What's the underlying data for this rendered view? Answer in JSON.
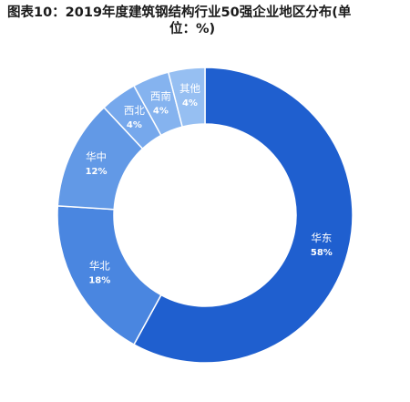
{
  "title_line1": "图表10：2019年度建筑钢结构行业50强企业地区分布(单",
  "title_line2": "位：%)",
  "chart_data": {
    "type": "pie",
    "variant": "donut",
    "title": "图表10：2019年度建筑钢结构行业50强企业地区分布(单位：%)",
    "slices": [
      {
        "label": "华东",
        "value": 58,
        "value_label": "58%",
        "color": "#1f5fcf"
      },
      {
        "label": "华北",
        "value": 18,
        "value_label": "18%",
        "color": "#4a86e0"
      },
      {
        "label": "华中",
        "value": 12,
        "value_label": "12%",
        "color": "#6299e6"
      },
      {
        "label": "西北",
        "value": 4,
        "value_label": "4%",
        "color": "#76a8ec"
      },
      {
        "label": "西南",
        "value": 4,
        "value_label": "4%",
        "color": "#85b3ef"
      },
      {
        "label": "其他",
        "value": 4,
        "value_label": "4%",
        "color": "#96bff2"
      }
    ],
    "start_angle_deg": 0,
    "direction": "clockwise",
    "unit": "%"
  }
}
